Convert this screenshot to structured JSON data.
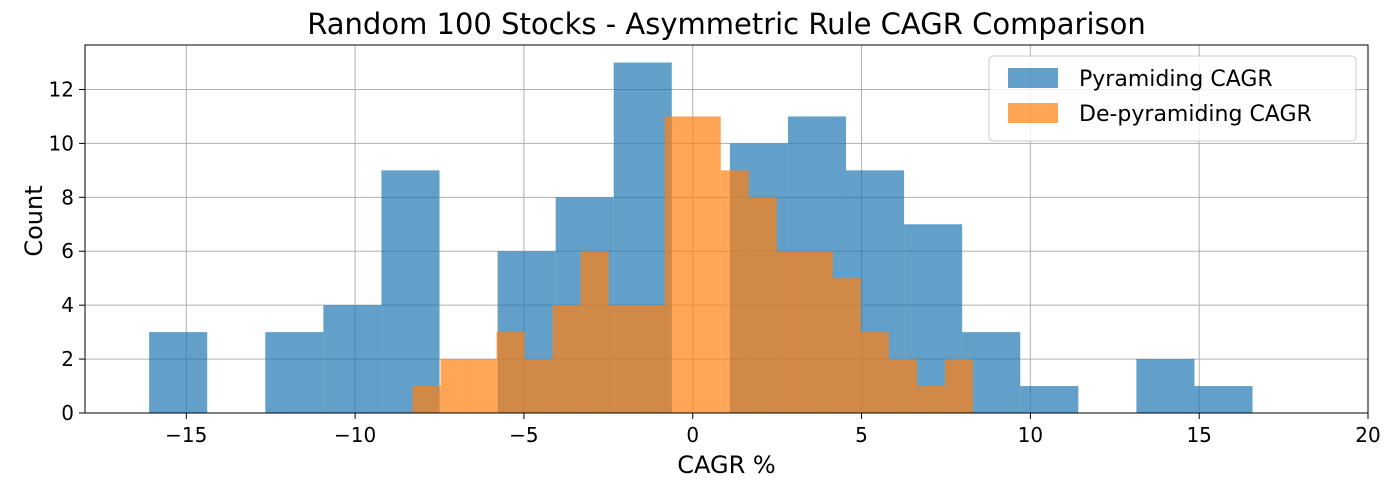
{
  "chart_data": {
    "type": "histogram",
    "title": "Random 100 Stocks - Asymmetric Rule CAGR Comparison",
    "xlabel": "CAGR %",
    "ylabel": "Count",
    "xlim": [
      -18,
      20
    ],
    "ylim": [
      0,
      13.65
    ],
    "xticks": [
      -15,
      -10,
      -5,
      0,
      5,
      10,
      15,
      20
    ],
    "xtick_labels": [
      "−15",
      "−10",
      "−5",
      "0",
      "5",
      "10",
      "15",
      "20"
    ],
    "yticks": [
      0,
      2,
      4,
      6,
      8,
      10,
      12
    ],
    "yticks_labels": [
      "0",
      "2",
      "4",
      "6",
      "8",
      "10",
      "12"
    ],
    "grid": true,
    "legend_position": "top-right",
    "series": [
      {
        "name": "Pyramiding CAGR",
        "color": "#1f77b4",
        "opacity": 0.7,
        "bin_edges": [
          -16.1,
          -14.38,
          -12.66,
          -10.94,
          -9.22,
          -7.5,
          -5.78,
          -4.06,
          -2.34,
          -0.62,
          1.1,
          2.82,
          4.54,
          6.26,
          7.98,
          9.7,
          11.42,
          13.14,
          14.86,
          16.58,
          18.3
        ],
        "counts": [
          3,
          0,
          3,
          4,
          9,
          0,
          6,
          8,
          13,
          0,
          10,
          11,
          9,
          7,
          3,
          1,
          0,
          2,
          1,
          0
        ]
      },
      {
        "name": "De-pyramiding CAGR",
        "color": "#ff7f0e",
        "opacity": 0.7,
        "bin_edges": [
          -8.3,
          -7.47,
          -6.64,
          -5.81,
          -4.98,
          -4.15,
          -3.32,
          -2.49,
          -1.66,
          -0.83,
          0.0,
          0.83,
          1.66,
          2.49,
          3.32,
          4.15,
          4.98,
          5.81,
          6.64,
          7.47,
          8.3
        ],
        "counts": [
          1,
          2,
          2,
          3,
          2,
          4,
          6,
          4,
          4,
          11,
          11,
          9,
          8,
          6,
          6,
          5,
          3,
          2,
          1,
          2
        ]
      }
    ]
  }
}
